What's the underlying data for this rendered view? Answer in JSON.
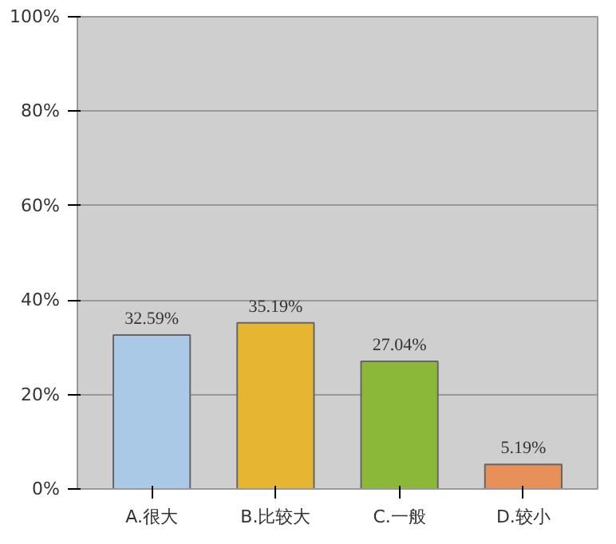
{
  "chart_data": {
    "type": "bar",
    "categories": [
      "A.很大",
      "B.比较大",
      "C.一般",
      "D.较小"
    ],
    "values": [
      32.59,
      35.19,
      27.04,
      5.19
    ],
    "colors": [
      "#a9c9e6",
      "#e6b632",
      "#8cb83a",
      "#e8905a"
    ],
    "value_labels": [
      "32.59%",
      "35.19%",
      "27.04%",
      "5.19%"
    ],
    "ylim": [
      0,
      100
    ],
    "yticks": [
      {
        "value": 0,
        "label": "0%"
      },
      {
        "value": 20,
        "label": "20%"
      },
      {
        "value": 40,
        "label": "40%"
      },
      {
        "value": 60,
        "label": "60%"
      },
      {
        "value": 80,
        "label": "80%"
      },
      {
        "value": 100,
        "label": "100%"
      }
    ],
    "grid": "y"
  }
}
